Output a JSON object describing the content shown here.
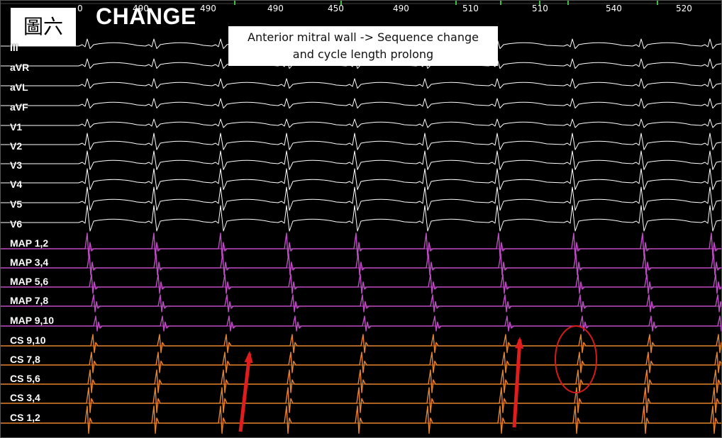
{
  "figure_tag": "圖六",
  "mode_title": "CHANGE",
  "annotation": {
    "line1": "Anterior mitral wall -> Sequence change",
    "line2": "and cycle length prolong"
  },
  "cycle_lengths": [
    "0",
    "490",
    "490",
    "490",
    "450",
    "490",
    "510",
    "510",
    "540",
    "520"
  ],
  "channels": [
    "III",
    "aVR",
    "aVL",
    "aVF",
    "V1",
    "V2",
    "V3",
    "V4",
    "V5",
    "V6",
    "MAP  1,2",
    "MAP  3,4",
    "MAP  5,6",
    "MAP  7,8",
    "MAP  9,10",
    "CS  9,10",
    "CS  7,8",
    "CS  5,6",
    "CS  3,4",
    "CS  1,2"
  ],
  "colors": {
    "background": "#000000",
    "ecg": "#ffffff",
    "map": "#c04bc6",
    "cs": "#e8822a",
    "arrow": "#e11c1c",
    "circle": "#d61a1a",
    "marker": "#3fbf3f"
  }
}
